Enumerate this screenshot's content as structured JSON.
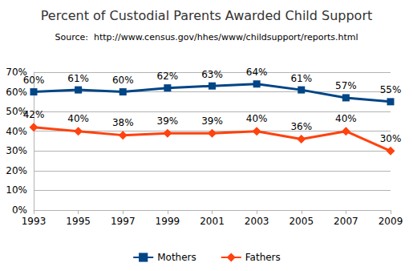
{
  "chart_data": {
    "type": "line",
    "title": "Percent of Custodial Parents Awarded Child Support",
    "subtitle": "Source:  http://www.census.gov/hhes/www/childsupport/reports.html",
    "categories": [
      "1993",
      "1995",
      "1997",
      "1999",
      "2001",
      "2003",
      "2005",
      "2007",
      "2009"
    ],
    "series": [
      {
        "name": "Mothers",
        "color": "#004586",
        "marker": "square",
        "line_style": "solid",
        "values": [
          60,
          61,
          60,
          62,
          63,
          64,
          61,
          57,
          55
        ],
        "value_labels": [
          "60%",
          "61%",
          "60%",
          "62%",
          "63%",
          "64%",
          "61%",
          "57%",
          "55%"
        ]
      },
      {
        "name": "Fathers",
        "color": "#ff420e",
        "marker": "diamond",
        "line_style": "solid",
        "values": [
          42,
          40,
          38,
          39,
          39,
          40,
          36,
          40,
          30
        ],
        "value_labels": [
          "42%",
          "40%",
          "38%",
          "39%",
          "39%",
          "40%",
          "36%",
          "40%",
          "30%"
        ]
      }
    ],
    "ylim": [
      0,
      70
    ],
    "yticks": [
      {
        "value": 0,
        "label": "0%"
      },
      {
        "value": 10,
        "label": "10%"
      },
      {
        "value": 20,
        "label": "20%"
      },
      {
        "value": 30,
        "label": "30%"
      },
      {
        "value": 40,
        "label": "40%"
      },
      {
        "value": 50,
        "label": "50%"
      },
      {
        "value": 60,
        "label": "60%"
      },
      {
        "value": 70,
        "label": "70%"
      }
    ],
    "grid": true,
    "legend": "bottom",
    "data_labels": true
  }
}
